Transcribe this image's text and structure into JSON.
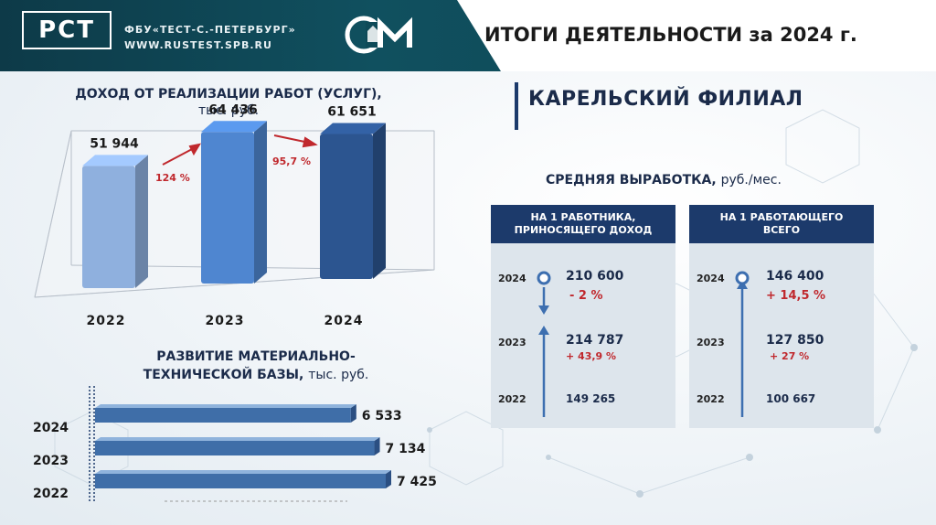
{
  "header": {
    "logo_text": "РСТ",
    "org_name": "ФБУ«ТЕСТ-С.-ПЕТЕРБУРГ»",
    "website": "WWW.RUSTEST.SPB.RU",
    "title": "ИТОГИ ДЕЯТЕЛЬНОСТИ за 2024 г.",
    "branch": "КАРЕЛЬСКИЙ ФИЛИАЛ"
  },
  "income": {
    "title": "ДОХОД ОТ РЕАЛИЗАЦИИ РАБОТ (УСЛУГ),",
    "unit": "тыс. руб.",
    "growth_2023": "124 %",
    "growth_2024": "95,7 %"
  },
  "base": {
    "title_line1": "РАЗВИТИЕ МАТЕРИАЛЬНО-",
    "title_line2": "ТЕХНИЧЕСКОЙ БАЗЫ,",
    "unit": "тыс. руб."
  },
  "output": {
    "title": "СРЕДНЯЯ ВЫРАБОТКА,",
    "unit": "руб./мес.",
    "panels": [
      {
        "header_line1": "НА 1 РАБОТНИКА,",
        "header_line2": "ПРИНОСЯЩЕГО ДОХОД",
        "rows": [
          {
            "year": "2024",
            "value": "210 600",
            "change": "- 2 %"
          },
          {
            "year": "2023",
            "value": "214 787",
            "change": "+ 43,9 %"
          },
          {
            "year": "2022",
            "value": "149 265",
            "change": ""
          }
        ]
      },
      {
        "header_line1": "НА 1 РАБОТАЮЩЕГО",
        "header_line2": "ВСЕГО",
        "rows": [
          {
            "year": "2024",
            "value": "146 400",
            "change": "+ 14,5 %"
          },
          {
            "year": "2023",
            "value": "127 850",
            "change": "+ 27 %"
          },
          {
            "year": "2022",
            "value": "100 667",
            "change": ""
          }
        ]
      }
    ]
  },
  "colors": {
    "dark_teal": "#0d3a48",
    "navy": "#1c3a6b",
    "accent_red": "#c0282d"
  },
  "chart_data": [
    {
      "type": "bar",
      "title": "ДОХОД ОТ РЕАЛИЗАЦИИ РАБОТ (УСЛУГ), тыс. руб.",
      "categories": [
        "2022",
        "2023",
        "2024"
      ],
      "values": [
        51944,
        64436,
        61651
      ],
      "value_labels": [
        "51 944",
        "64 436",
        "61 651"
      ],
      "colors": [
        "#8fb0de",
        "#4f86d0",
        "#2c5590"
      ],
      "ylim": [
        0,
        70000
      ]
    },
    {
      "type": "bar",
      "orientation": "horizontal",
      "title": "РАЗВИТИЕ МАТЕРИАЛЬНО-ТЕХНИЧЕСКОЙ БАЗЫ, тыс. руб.",
      "categories": [
        "2024",
        "2023",
        "2022"
      ],
      "values": [
        6533,
        7134,
        7425
      ],
      "value_labels": [
        "6 533",
        "7 134",
        "7 425"
      ],
      "xlim": [
        0,
        7425
      ]
    }
  ]
}
